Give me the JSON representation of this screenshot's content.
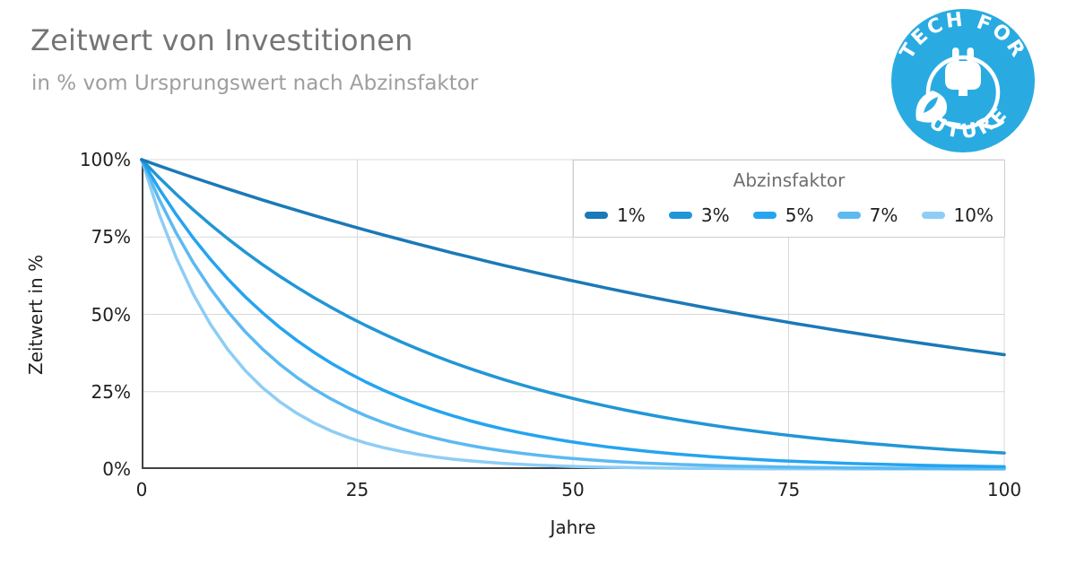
{
  "header": {
    "title": "Zeitwert von Investitionen",
    "subtitle": "in % vom Ursprungswert nach Abzinsfaktor"
  },
  "logo": {
    "top_text": "TECH FOR",
    "bottom_text": "FUTURE",
    "color": "#29abe2"
  },
  "chart_data": {
    "type": "line",
    "title": "Zeitwert von Investitionen",
    "subtitle": "in % vom Ursprungswert nach Abzinsfaktor",
    "xlabel": "Jahre",
    "ylabel": "Zeitwert in %",
    "xlim": [
      0,
      100
    ],
    "ylim": [
      0,
      100
    ],
    "x_ticks": [
      0,
      25,
      50,
      75,
      100
    ],
    "x_tick_labels": [
      "0",
      "25",
      "50",
      "75",
      "100"
    ],
    "y_ticks": [
      0,
      25,
      50,
      75,
      100
    ],
    "y_tick_labels": [
      "0%",
      "25%",
      "50%",
      "75%",
      "100%"
    ],
    "grid": true,
    "legend": {
      "title": "Abzinsfaktor",
      "position": "top-right"
    },
    "grid_color": "#d9d9d9",
    "axis_color": "#424242",
    "x": [
      0,
      2,
      4,
      6,
      8,
      10,
      12,
      14,
      16,
      18,
      20,
      22,
      24,
      26,
      28,
      30,
      32,
      34,
      36,
      38,
      40,
      42,
      44,
      46,
      48,
      50,
      52,
      54,
      56,
      58,
      60,
      62,
      64,
      66,
      68,
      70,
      72,
      74,
      76,
      78,
      80,
      82,
      84,
      86,
      88,
      90,
      92,
      94,
      96,
      98,
      100
    ],
    "series": [
      {
        "name": "1%",
        "color": "#1b79b7",
        "values": [
          100,
          98.03,
          96.1,
          94.2,
          92.35,
          90.53,
          88.74,
          87.0,
          85.28,
          83.6,
          81.95,
          80.34,
          78.76,
          77.2,
          75.68,
          74.19,
          72.73,
          71.3,
          69.89,
          68.52,
          67.17,
          65.84,
          64.54,
          63.27,
          62.03,
          60.8,
          59.61,
          58.43,
          57.28,
          56.15,
          55.04,
          53.96,
          52.9,
          51.85,
          50.83,
          49.83,
          48.85,
          47.89,
          46.94,
          46.02,
          45.11,
          44.22,
          43.35,
          42.5,
          41.66,
          40.84,
          40.03,
          39.25,
          38.47,
          37.71,
          36.97
        ]
      },
      {
        "name": "3%",
        "color": "#2196d6",
        "values": [
          100,
          94.26,
          88.85,
          83.75,
          78.94,
          74.41,
          70.14,
          66.11,
          62.32,
          58.74,
          55.37,
          52.19,
          49.19,
          46.37,
          43.71,
          41.2,
          38.83,
          36.6,
          34.5,
          32.52,
          30.66,
          28.9,
          27.24,
          25.67,
          24.2,
          22.81,
          21.5,
          20.27,
          19.1,
          18.01,
          16.97,
          16.0,
          15.08,
          14.21,
          13.4,
          12.63,
          11.9,
          11.22,
          10.58,
          9.97,
          9.4,
          8.86,
          8.35,
          7.87,
          7.42,
          6.99,
          6.59,
          6.21,
          5.86,
          5.52,
          5.2
        ]
      },
      {
        "name": "5%",
        "color": "#25a4f0",
        "values": [
          100,
          90.7,
          82.27,
          74.62,
          67.68,
          61.39,
          55.68,
          50.51,
          45.81,
          41.55,
          37.69,
          34.18,
          31.01,
          28.12,
          25.51,
          23.14,
          20.99,
          19.04,
          17.27,
          15.66,
          14.2,
          12.88,
          11.69,
          10.6,
          9.61,
          8.72,
          7.91,
          7.17,
          6.51,
          5.9,
          5.35,
          4.86,
          4.4,
          3.99,
          3.62,
          3.29,
          2.98,
          2.7,
          2.45,
          2.22,
          2.02,
          1.83,
          1.66,
          1.51,
          1.37,
          1.24,
          1.12,
          1.02,
          0.92,
          0.84,
          0.76
        ]
      },
      {
        "name": "7%",
        "color": "#5cb9f2",
        "values": [
          100,
          87.34,
          76.29,
          66.63,
          58.2,
          50.83,
          44.4,
          38.78,
          33.87,
          29.59,
          25.84,
          22.57,
          19.71,
          17.22,
          15.04,
          13.14,
          11.47,
          10.02,
          8.75,
          7.65,
          6.68,
          5.83,
          5.09,
          4.45,
          3.89,
          3.39,
          2.97,
          2.59,
          2.26,
          1.98,
          1.73,
          1.51,
          1.32,
          1.15,
          1.0,
          0.88,
          0.77,
          0.67,
          0.58,
          0.51,
          0.45,
          0.39,
          0.34,
          0.3,
          0.26,
          0.23,
          0.2,
          0.17,
          0.15,
          0.13,
          0.12
        ]
      },
      {
        "name": "10%",
        "color": "#8ecdf5",
        "values": [
          100,
          82.64,
          68.3,
          56.45,
          46.65,
          38.55,
          31.86,
          26.33,
          21.76,
          17.99,
          14.86,
          12.28,
          10.15,
          8.39,
          6.93,
          5.73,
          4.74,
          3.91,
          3.23,
          2.67,
          2.21,
          1.83,
          1.51,
          1.25,
          1.03,
          0.85,
          0.7,
          0.58,
          0.48,
          0.4,
          0.33,
          0.27,
          0.22,
          0.19,
          0.15,
          0.13,
          0.1,
          0.09,
          0.07,
          0.06,
          0.05,
          0.04,
          0.03,
          0.03,
          0.02,
          0.02,
          0.02,
          0.01,
          0.01,
          0.01,
          0.01
        ]
      }
    ]
  }
}
